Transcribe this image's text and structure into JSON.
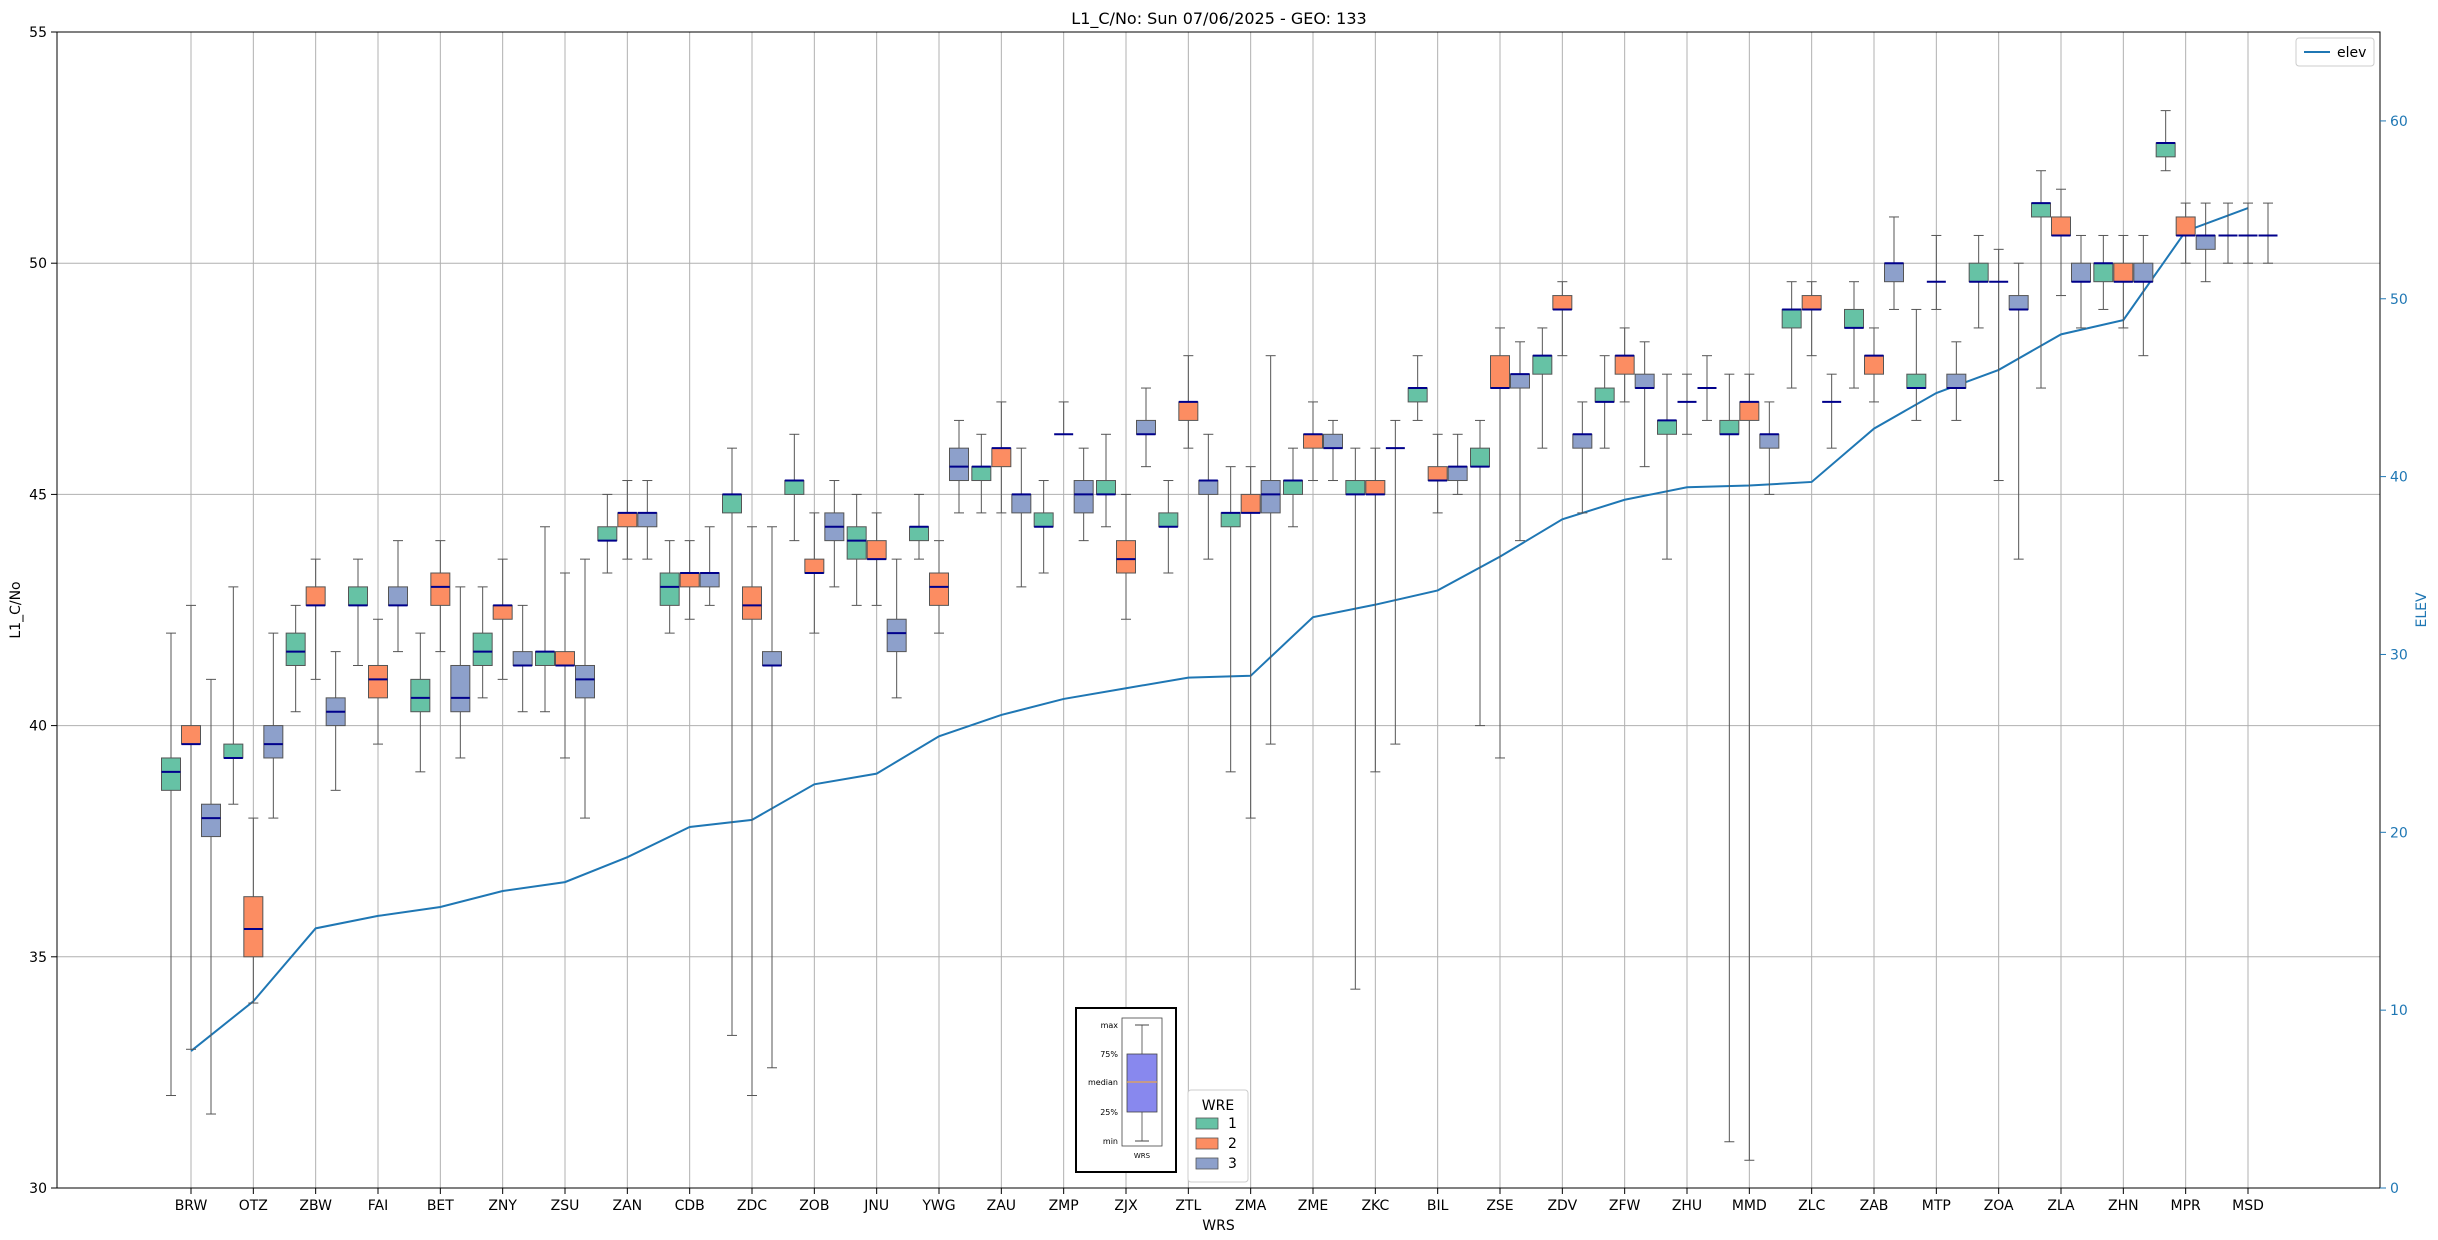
{
  "chart_data": {
    "type": "boxplot",
    "title": "L1_C/No: Sun 07/06/2025 - GEO: 133",
    "xlabel": "WRS",
    "ylabel": "L1_C/No",
    "y2label": "ELEV",
    "ylim": [
      30,
      55
    ],
    "y2lim": [
      0,
      65
    ],
    "yticks": [
      30,
      35,
      40,
      45,
      50,
      55
    ],
    "y2ticks": [
      0,
      10,
      20,
      30,
      40,
      50,
      60
    ],
    "grid": true,
    "categories": [
      "BRW",
      "OTZ",
      "ZBW",
      "FAI",
      "BET",
      "ZNY",
      "ZSU",
      "ZAN",
      "CDB",
      "ZDC",
      "ZOB",
      "JNU",
      "YWG",
      "ZAU",
      "ZMP",
      "ZJX",
      "ZTL",
      "ZMA",
      "ZME",
      "ZKC",
      "BIL",
      "ZSE",
      "ZDV",
      "ZFW",
      "ZHU",
      "MMD",
      "ZLC",
      "ZAB",
      "MTP",
      "ZOA",
      "ZLA",
      "ZHN",
      "MPR",
      "MSD"
    ],
    "colors": {
      "1": "#66c2a5",
      "2": "#fc8d62",
      "3": "#8da0cb",
      "median": "#00008b",
      "elev": "#1f77b4",
      "whisker": "#555555"
    },
    "legend_wre": {
      "title": "WRE",
      "labels": [
        "1",
        "2",
        "3"
      ],
      "placement": "bottom-center"
    },
    "legend_elev": {
      "label": "elev",
      "placement": "top-right"
    },
    "key_labels": [
      "max",
      "75%",
      "median",
      "25%",
      "min"
    ],
    "key_xlabel": "WRS",
    "series_elev": {
      "name": "elev",
      "values": [
        7.7,
        10.5,
        14.6,
        15.3,
        15.8,
        16.7,
        17.2,
        18.6,
        20.3,
        20.7,
        22.7,
        23.3,
        25.4,
        26.6,
        27.5,
        28.1,
        28.7,
        28.8,
        32.1,
        32.8,
        33.6,
        35.5,
        37.6,
        38.7,
        39.4,
        39.5,
        39.7,
        42.7,
        44.7,
        46.0,
        48.0,
        48.8,
        53.8,
        55.1
      ]
    },
    "boxes": [
      {
        "site": "BRW",
        "wre": "1",
        "min": 32.0,
        "q1": 38.6,
        "median": 39.0,
        "q3": 39.3,
        "max": 42.0
      },
      {
        "site": "BRW",
        "wre": "2",
        "min": 33.0,
        "q1": 39.6,
        "median": 39.6,
        "q3": 40.0,
        "max": 42.6
      },
      {
        "site": "BRW",
        "wre": "3",
        "min": 31.6,
        "q1": 37.6,
        "median": 38.0,
        "q3": 38.3,
        "max": 41.0
      },
      {
        "site": "OTZ",
        "wre": "1",
        "min": 38.3,
        "q1": 39.3,
        "median": 39.3,
        "q3": 39.6,
        "max": 43.0
      },
      {
        "site": "OTZ",
        "wre": "2",
        "min": 34.0,
        "q1": 35.0,
        "median": 35.6,
        "q3": 36.3,
        "max": 38.0
      },
      {
        "site": "OTZ",
        "wre": "3",
        "min": 38.0,
        "q1": 39.3,
        "median": 39.6,
        "q3": 40.0,
        "max": 42.0
      },
      {
        "site": "ZBW",
        "wre": "1",
        "min": 40.3,
        "q1": 41.3,
        "median": 41.6,
        "q3": 42.0,
        "max": 42.6
      },
      {
        "site": "ZBW",
        "wre": "2",
        "min": 41.0,
        "q1": 42.6,
        "median": 42.6,
        "q3": 43.0,
        "max": 43.6
      },
      {
        "site": "ZBW",
        "wre": "3",
        "min": 38.6,
        "q1": 40.0,
        "median": 40.3,
        "q3": 40.6,
        "max": 41.6
      },
      {
        "site": "FAI",
        "wre": "1",
        "min": 41.3,
        "q1": 42.6,
        "median": 42.6,
        "q3": 43.0,
        "max": 43.6
      },
      {
        "site": "FAI",
        "wre": "2",
        "min": 39.6,
        "q1": 40.6,
        "median": 41.0,
        "q3": 41.3,
        "max": 42.3
      },
      {
        "site": "FAI",
        "wre": "3",
        "min": 41.6,
        "q1": 42.6,
        "median": 42.6,
        "q3": 43.0,
        "max": 44.0
      },
      {
        "site": "BET",
        "wre": "1",
        "min": 39.0,
        "q1": 40.3,
        "median": 40.6,
        "q3": 41.0,
        "max": 42.0
      },
      {
        "site": "BET",
        "wre": "2",
        "min": 41.6,
        "q1": 42.6,
        "median": 43.0,
        "q3": 43.3,
        "max": 44.0
      },
      {
        "site": "BET",
        "wre": "3",
        "min": 39.3,
        "q1": 40.3,
        "median": 40.6,
        "q3": 41.3,
        "max": 43.0
      },
      {
        "site": "ZNY",
        "wre": "1",
        "min": 40.6,
        "q1": 41.3,
        "median": 41.6,
        "q3": 42.0,
        "max": 43.0
      },
      {
        "site": "ZNY",
        "wre": "2",
        "min": 41.0,
        "q1": 42.3,
        "median": 42.6,
        "q3": 42.6,
        "max": 43.6
      },
      {
        "site": "ZNY",
        "wre": "3",
        "min": 40.3,
        "q1": 41.3,
        "median": 41.3,
        "q3": 41.6,
        "max": 42.6
      },
      {
        "site": "ZSU",
        "wre": "1",
        "min": 40.3,
        "q1": 41.3,
        "median": 41.6,
        "q3": 41.6,
        "max": 44.3
      },
      {
        "site": "ZSU",
        "wre": "2",
        "min": 39.3,
        "q1": 41.3,
        "median": 41.3,
        "q3": 41.6,
        "max": 43.3
      },
      {
        "site": "ZSU",
        "wre": "3",
        "min": 38.0,
        "q1": 40.6,
        "median": 41.0,
        "q3": 41.3,
        "max": 43.6
      },
      {
        "site": "ZAN",
        "wre": "1",
        "min": 43.3,
        "q1": 44.0,
        "median": 44.0,
        "q3": 44.3,
        "max": 45.0
      },
      {
        "site": "ZAN",
        "wre": "2",
        "min": 43.6,
        "q1": 44.3,
        "median": 44.6,
        "q3": 44.6,
        "max": 45.3
      },
      {
        "site": "ZAN",
        "wre": "3",
        "min": 43.6,
        "q1": 44.3,
        "median": 44.6,
        "q3": 44.6,
        "max": 45.3
      },
      {
        "site": "CDB",
        "wre": "1",
        "min": 42.0,
        "q1": 42.6,
        "median": 43.0,
        "q3": 43.3,
        "max": 44.0
      },
      {
        "site": "CDB",
        "wre": "2",
        "min": 42.3,
        "q1": 43.0,
        "median": 43.3,
        "q3": 43.3,
        "max": 44.0
      },
      {
        "site": "CDB",
        "wre": "3",
        "min": 42.6,
        "q1": 43.0,
        "median": 43.3,
        "q3": 43.3,
        "max": 44.3
      },
      {
        "site": "ZDC",
        "wre": "1",
        "min": 33.3,
        "q1": 44.6,
        "median": 45.0,
        "q3": 45.0,
        "max": 46.0
      },
      {
        "site": "ZDC",
        "wre": "2",
        "min": 32.0,
        "q1": 42.3,
        "median": 42.6,
        "q3": 43.0,
        "max": 44.3
      },
      {
        "site": "ZDC",
        "wre": "3",
        "min": 32.6,
        "q1": 41.3,
        "median": 41.3,
        "q3": 41.6,
        "max": 44.3
      },
      {
        "site": "ZOB",
        "wre": "1",
        "min": 44.0,
        "q1": 45.0,
        "median": 45.3,
        "q3": 45.3,
        "max": 46.3
      },
      {
        "site": "ZOB",
        "wre": "2",
        "min": 42.0,
        "q1": 43.3,
        "median": 43.3,
        "q3": 43.6,
        "max": 44.6
      },
      {
        "site": "ZOB",
        "wre": "3",
        "min": 43.0,
        "q1": 44.0,
        "median": 44.3,
        "q3": 44.6,
        "max": 45.3
      },
      {
        "site": "JNU",
        "wre": "1",
        "min": 42.6,
        "q1": 43.6,
        "median": 44.0,
        "q3": 44.3,
        "max": 45.0
      },
      {
        "site": "JNU",
        "wre": "2",
        "min": 42.6,
        "q1": 43.6,
        "median": 43.6,
        "q3": 44.0,
        "max": 44.6
      },
      {
        "site": "JNU",
        "wre": "3",
        "min": 40.6,
        "q1": 41.6,
        "median": 42.0,
        "q3": 42.3,
        "max": 43.6
      },
      {
        "site": "YWG",
        "wre": "1",
        "min": 43.6,
        "q1": 44.0,
        "median": 44.3,
        "q3": 44.3,
        "max": 45.0
      },
      {
        "site": "YWG",
        "wre": "2",
        "min": 42.0,
        "q1": 42.6,
        "median": 43.0,
        "q3": 43.3,
        "max": 44.0
      },
      {
        "site": "YWG",
        "wre": "3",
        "min": 44.6,
        "q1": 45.3,
        "median": 45.6,
        "q3": 46.0,
        "max": 46.6
      },
      {
        "site": "ZAU",
        "wre": "1",
        "min": 44.6,
        "q1": 45.3,
        "median": 45.6,
        "q3": 45.6,
        "max": 46.3
      },
      {
        "site": "ZAU",
        "wre": "2",
        "min": 44.6,
        "q1": 45.6,
        "median": 46.0,
        "q3": 46.0,
        "max": 47.0
      },
      {
        "site": "ZAU",
        "wre": "3",
        "min": 43.0,
        "q1": 44.6,
        "median": 45.0,
        "q3": 45.0,
        "max": 46.0
      },
      {
        "site": "ZMP",
        "wre": "1",
        "min": 43.3,
        "q1": 44.3,
        "median": 44.3,
        "q3": 44.6,
        "max": 45.3
      },
      {
        "site": "ZMP",
        "wre": "2",
        "min": 46.3,
        "q1": 46.3,
        "median": 46.3,
        "q3": 46.3,
        "max": 47.0
      },
      {
        "site": "ZMP",
        "wre": "3",
        "min": 44.0,
        "q1": 44.6,
        "median": 45.0,
        "q3": 45.3,
        "max": 46.0
      },
      {
        "site": "ZJX",
        "wre": "1",
        "min": 44.3,
        "q1": 45.0,
        "median": 45.0,
        "q3": 45.3,
        "max": 46.3
      },
      {
        "site": "ZJX",
        "wre": "2",
        "min": 42.3,
        "q1": 43.3,
        "median": 43.6,
        "q3": 44.0,
        "max": 45.0
      },
      {
        "site": "ZJX",
        "wre": "3",
        "min": 45.6,
        "q1": 46.3,
        "median": 46.3,
        "q3": 46.6,
        "max": 47.3
      },
      {
        "site": "ZTL",
        "wre": "1",
        "min": 43.3,
        "q1": 44.3,
        "median": 44.3,
        "q3": 44.6,
        "max": 45.3
      },
      {
        "site": "ZTL",
        "wre": "2",
        "min": 46.0,
        "q1": 46.6,
        "median": 47.0,
        "q3": 47.0,
        "max": 48.0
      },
      {
        "site": "ZTL",
        "wre": "3",
        "min": 43.6,
        "q1": 45.0,
        "median": 45.3,
        "q3": 45.3,
        "max": 46.3
      },
      {
        "site": "ZMA",
        "wre": "1",
        "min": 39.0,
        "q1": 44.3,
        "median": 44.6,
        "q3": 44.6,
        "max": 45.6
      },
      {
        "site": "ZMA",
        "wre": "2",
        "min": 38.0,
        "q1": 44.6,
        "median": 44.6,
        "q3": 45.0,
        "max": 45.6
      },
      {
        "site": "ZMA",
        "wre": "3",
        "min": 39.6,
        "q1": 44.6,
        "median": 45.0,
        "q3": 45.3,
        "max": 48.0
      },
      {
        "site": "ZME",
        "wre": "1",
        "min": 44.3,
        "q1": 45.0,
        "median": 45.3,
        "q3": 45.3,
        "max": 46.0
      },
      {
        "site": "ZME",
        "wre": "2",
        "min": 45.3,
        "q1": 46.0,
        "median": 46.3,
        "q3": 46.3,
        "max": 47.0
      },
      {
        "site": "ZME",
        "wre": "3",
        "min": 45.3,
        "q1": 46.0,
        "median": 46.0,
        "q3": 46.3,
        "max": 46.6
      },
      {
        "site": "ZKC",
        "wre": "1",
        "min": 34.3,
        "q1": 45.0,
        "median": 45.0,
        "q3": 45.3,
        "max": 46.0
      },
      {
        "site": "ZKC",
        "wre": "2",
        "min": 39.0,
        "q1": 45.0,
        "median": 45.0,
        "q3": 45.3,
        "max": 46.0
      },
      {
        "site": "ZKC",
        "wre": "3",
        "min": 39.6,
        "q1": 46.0,
        "median": 46.0,
        "q3": 46.0,
        "max": 46.6
      },
      {
        "site": "BIL",
        "wre": "1",
        "min": 46.6,
        "q1": 47.0,
        "median": 47.3,
        "q3": 47.3,
        "max": 48.0
      },
      {
        "site": "BIL",
        "wre": "2",
        "min": 44.6,
        "q1": 45.3,
        "median": 45.3,
        "q3": 45.6,
        "max": 46.3
      },
      {
        "site": "BIL",
        "wre": "3",
        "min": 45.0,
        "q1": 45.3,
        "median": 45.6,
        "q3": 45.6,
        "max": 46.3
      },
      {
        "site": "ZSE",
        "wre": "1",
        "min": 40.0,
        "q1": 45.6,
        "median": 45.6,
        "q3": 46.0,
        "max": 46.6
      },
      {
        "site": "ZSE",
        "wre": "2",
        "min": 39.3,
        "q1": 47.3,
        "median": 47.3,
        "q3": 48.0,
        "max": 48.6
      },
      {
        "site": "ZSE",
        "wre": "3",
        "min": 44.0,
        "q1": 47.3,
        "median": 47.6,
        "q3": 47.6,
        "max": 48.3
      },
      {
        "site": "ZDV",
        "wre": "1",
        "min": 46.0,
        "q1": 47.6,
        "median": 48.0,
        "q3": 48.0,
        "max": 48.6
      },
      {
        "site": "ZDV",
        "wre": "2",
        "min": 48.0,
        "q1": 49.0,
        "median": 49.0,
        "q3": 49.3,
        "max": 49.6
      },
      {
        "site": "ZDV",
        "wre": "3",
        "min": 44.6,
        "q1": 46.0,
        "median": 46.3,
        "q3": 46.3,
        "max": 47.0
      },
      {
        "site": "ZFW",
        "wre": "1",
        "min": 46.0,
        "q1": 47.0,
        "median": 47.0,
        "q3": 47.3,
        "max": 48.0
      },
      {
        "site": "ZFW",
        "wre": "2",
        "min": 47.0,
        "q1": 47.6,
        "median": 48.0,
        "q3": 48.0,
        "max": 48.6
      },
      {
        "site": "ZFW",
        "wre": "3",
        "min": 45.6,
        "q1": 47.3,
        "median": 47.3,
        "q3": 47.6,
        "max": 48.3
      },
      {
        "site": "ZHU",
        "wre": "1",
        "min": 43.6,
        "q1": 46.3,
        "median": 46.6,
        "q3": 46.6,
        "max": 47.6
      },
      {
        "site": "ZHU",
        "wre": "2",
        "min": 46.3,
        "q1": 47.0,
        "median": 47.0,
        "q3": 47.0,
        "max": 47.6
      },
      {
        "site": "ZHU",
        "wre": "3",
        "min": 46.6,
        "q1": 47.3,
        "median": 47.3,
        "q3": 47.3,
        "max": 48.0
      },
      {
        "site": "MMD",
        "wre": "1",
        "min": 31.0,
        "q1": 46.3,
        "median": 46.3,
        "q3": 46.6,
        "max": 47.6
      },
      {
        "site": "MMD",
        "wre": "2",
        "min": 30.6,
        "q1": 46.6,
        "median": 47.0,
        "q3": 47.0,
        "max": 47.6
      },
      {
        "site": "MMD",
        "wre": "3",
        "min": 45.0,
        "q1": 46.0,
        "median": 46.3,
        "q3": 46.3,
        "max": 47.0
      },
      {
        "site": "ZLC",
        "wre": "1",
        "min": 47.3,
        "q1": 48.6,
        "median": 49.0,
        "q3": 49.0,
        "max": 49.6
      },
      {
        "site": "ZLC",
        "wre": "2",
        "min": 48.0,
        "q1": 49.0,
        "median": 49.0,
        "q3": 49.3,
        "max": 49.6
      },
      {
        "site": "ZLC",
        "wre": "3",
        "min": 46.0,
        "q1": 47.0,
        "median": 47.0,
        "q3": 47.0,
        "max": 47.6
      },
      {
        "site": "ZAB",
        "wre": "1",
        "min": 47.3,
        "q1": 48.6,
        "median": 48.6,
        "q3": 49.0,
        "max": 49.6
      },
      {
        "site": "ZAB",
        "wre": "2",
        "min": 47.0,
        "q1": 47.6,
        "median": 48.0,
        "q3": 48.0,
        "max": 48.6
      },
      {
        "site": "ZAB",
        "wre": "3",
        "min": 49.0,
        "q1": 49.6,
        "median": 50.0,
        "q3": 50.0,
        "max": 51.0
      },
      {
        "site": "MTP",
        "wre": "1",
        "min": 46.6,
        "q1": 47.3,
        "median": 47.3,
        "q3": 47.6,
        "max": 49.0
      },
      {
        "site": "MTP",
        "wre": "2",
        "min": 49.0,
        "q1": 49.6,
        "median": 49.6,
        "q3": 49.6,
        "max": 50.6
      },
      {
        "site": "MTP",
        "wre": "3",
        "min": 46.6,
        "q1": 47.3,
        "median": 47.3,
        "q3": 47.6,
        "max": 48.3
      },
      {
        "site": "ZOA",
        "wre": "1",
        "min": 48.6,
        "q1": 49.6,
        "median": 49.6,
        "q3": 50.0,
        "max": 50.6
      },
      {
        "site": "ZOA",
        "wre": "2",
        "min": 45.3,
        "q1": 49.6,
        "median": 49.6,
        "q3": 49.6,
        "max": 50.3
      },
      {
        "site": "ZOA",
        "wre": "3",
        "min": 43.6,
        "q1": 49.0,
        "median": 49.0,
        "q3": 49.3,
        "max": 50.0
      },
      {
        "site": "ZLA",
        "wre": "1",
        "min": 47.3,
        "q1": 51.0,
        "median": 51.3,
        "q3": 51.3,
        "max": 52.0
      },
      {
        "site": "ZLA",
        "wre": "2",
        "min": 49.3,
        "q1": 50.6,
        "median": 50.6,
        "q3": 51.0,
        "max": 51.6
      },
      {
        "site": "ZLA",
        "wre": "3",
        "min": 48.6,
        "q1": 49.6,
        "median": 49.6,
        "q3": 50.0,
        "max": 50.6
      },
      {
        "site": "ZHN",
        "wre": "1",
        "min": 49.0,
        "q1": 49.6,
        "median": 50.0,
        "q3": 50.0,
        "max": 50.6
      },
      {
        "site": "ZHN",
        "wre": "2",
        "min": 48.6,
        "q1": 49.6,
        "median": 49.6,
        "q3": 50.0,
        "max": 50.6
      },
      {
        "site": "ZHN",
        "wre": "3",
        "min": 48.0,
        "q1": 49.6,
        "median": 49.6,
        "q3": 50.0,
        "max": 50.6
      },
      {
        "site": "MPR",
        "wre": "1",
        "min": 52.0,
        "q1": 52.3,
        "median": 52.6,
        "q3": 52.6,
        "max": 53.3
      },
      {
        "site": "MPR",
        "wre": "2",
        "min": 50.0,
        "q1": 50.6,
        "median": 50.6,
        "q3": 51.0,
        "max": 51.3
      },
      {
        "site": "MPR",
        "wre": "3",
        "min": 49.6,
        "q1": 50.3,
        "median": 50.6,
        "q3": 50.6,
        "max": 51.3
      },
      {
        "site": "MSD",
        "wre": "1",
        "min": 50.0,
        "q1": 50.6,
        "median": 50.6,
        "q3": 50.6,
        "max": 51.3
      },
      {
        "site": "MSD",
        "wre": "2",
        "min": 50.0,
        "q1": 50.6,
        "median": 50.6,
        "q3": 50.6,
        "max": 51.3
      },
      {
        "site": "MSD",
        "wre": "3",
        "min": 50.0,
        "q1": 50.6,
        "median": 50.6,
        "q3": 50.6,
        "max": 51.3
      }
    ]
  }
}
